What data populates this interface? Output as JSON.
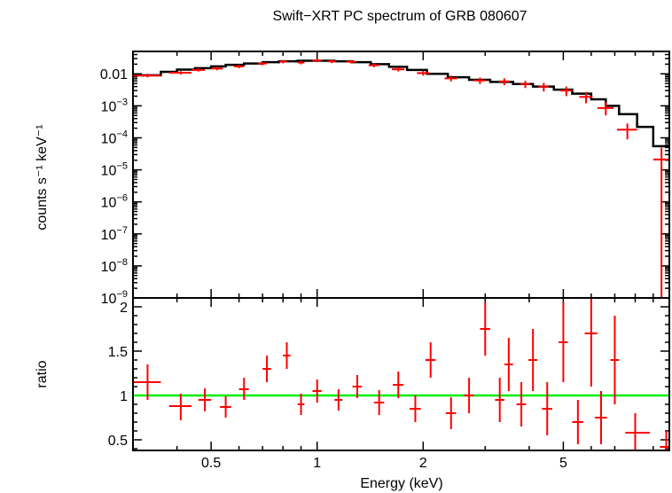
{
  "chart_data": [
    {
      "type": "scatter",
      "title": "Swift−XRT PC spectrum of GRB 080607",
      "xlabel": "",
      "ylabel": "counts s⁻¹ keV⁻¹",
      "xscale": "log",
      "yscale": "log",
      "xlim": [
        0.3,
        10
      ],
      "ylim": [
        1e-09,
        0.05
      ],
      "ytick_labels": [
        {
          "value": 0.01,
          "base": "0.01",
          "exp": ""
        },
        {
          "value": 0.001,
          "base": "10",
          "exp": "−3"
        },
        {
          "value": 0.0001,
          "base": "10",
          "exp": "−4"
        },
        {
          "value": 1e-05,
          "base": "10",
          "exp": "−5"
        },
        {
          "value": 1e-06,
          "base": "10",
          "exp": "−6"
        },
        {
          "value": 1e-07,
          "base": "10",
          "exp": "−7"
        },
        {
          "value": 1e-08,
          "base": "10",
          "exp": "−8"
        },
        {
          "value": 1e-09,
          "base": "10",
          "exp": "−9"
        }
      ],
      "grid": false,
      "series": [
        {
          "color": "#ff0000",
          "style": "errorbars",
          "points": [
            {
              "x": 0.33,
              "xerr": [
                0.3,
                0.36
              ],
              "y": 0.0088,
              "yerr": [
                0.0077,
                0.01
              ]
            },
            {
              "x": 0.41,
              "xerr": [
                0.38,
                0.44
              ],
              "y": 0.0108,
              "yerr": [
                0.0095,
                0.0121
              ]
            },
            {
              "x": 0.46,
              "xerr": [
                0.44,
                0.48
              ],
              "y": 0.0132,
              "yerr": [
                0.0118,
                0.015
              ]
            },
            {
              "x": 0.52,
              "xerr": [
                0.5,
                0.54
              ],
              "y": 0.0146,
              "yerr": [
                0.013,
                0.0165
              ]
            },
            {
              "x": 0.6,
              "xerr": [
                0.58,
                0.62
              ],
              "y": 0.017,
              "yerr": [
                0.015,
                0.0192
              ]
            },
            {
              "x": 0.7,
              "xerr": [
                0.68,
                0.72
              ],
              "y": 0.021,
              "yerr": [
                0.0185,
                0.0235
              ]
            },
            {
              "x": 0.8,
              "xerr": [
                0.78,
                0.82
              ],
              "y": 0.024,
              "yerr": [
                0.0212,
                0.027
              ]
            },
            {
              "x": 0.9,
              "xerr": [
                0.88,
                0.92
              ],
              "y": 0.0225,
              "yerr": [
                0.0198,
                0.0255
              ]
            },
            {
              "x": 1.0,
              "xerr": [
                0.97,
                1.03
              ],
              "y": 0.026,
              "yerr": [
                0.023,
                0.029
              ]
            },
            {
              "x": 1.1,
              "xerr": [
                1.07,
                1.13
              ],
              "y": 0.0245,
              "yerr": [
                0.0215,
                0.0275
              ]
            },
            {
              "x": 1.25,
              "xerr": [
                1.21,
                1.29
              ],
              "y": 0.0238,
              "yerr": [
                0.021,
                0.0268
              ]
            },
            {
              "x": 1.45,
              "xerr": [
                1.4,
                1.5
              ],
              "y": 0.0185,
              "yerr": [
                0.016,
                0.021
              ]
            },
            {
              "x": 1.7,
              "xerr": [
                1.63,
                1.77
              ],
              "y": 0.0138,
              "yerr": [
                0.0118,
                0.016
              ]
            },
            {
              "x": 2.0,
              "xerr": [
                1.92,
                2.08
              ],
              "y": 0.0105,
              "yerr": [
                0.0088,
                0.0122
              ]
            },
            {
              "x": 2.4,
              "xerr": [
                2.3,
                2.5
              ],
              "y": 0.0072,
              "yerr": [
                0.0058,
                0.0088
              ]
            },
            {
              "x": 2.9,
              "xerr": [
                2.78,
                3.02
              ],
              "y": 0.0062,
              "yerr": [
                0.0048,
                0.0076
              ]
            },
            {
              "x": 3.4,
              "xerr": [
                3.28,
                3.52
              ],
              "y": 0.0058,
              "yerr": [
                0.0044,
                0.0072
              ]
            },
            {
              "x": 3.9,
              "xerr": [
                3.78,
                4.02
              ],
              "y": 0.0048,
              "yerr": [
                0.0036,
                0.006
              ]
            },
            {
              "x": 4.4,
              "xerr": [
                4.25,
                4.55
              ],
              "y": 0.004,
              "yerr": [
                0.0028,
                0.0052
              ]
            },
            {
              "x": 5.1,
              "xerr": [
                4.9,
                5.3
              ],
              "y": 0.003,
              "yerr": [
                0.002,
                0.004
              ]
            },
            {
              "x": 5.8,
              "xerr": [
                5.55,
                6.05
              ],
              "y": 0.0019,
              "yerr": [
                0.0012,
                0.0027
              ]
            },
            {
              "x": 6.6,
              "xerr": [
                6.25,
                6.95
              ],
              "y": 0.00085,
              "yerr": [
                0.0005,
                0.0013
              ]
            },
            {
              "x": 7.6,
              "xerr": [
                7.1,
                8.1
              ],
              "y": 0.00018,
              "yerr": [
                9e-05,
                0.00028
              ]
            },
            {
              "x": 9.5,
              "xerr": [
                9.0,
                10.0
              ],
              "y": 2.1e-05,
              "yerr": [
                1e-09,
                5e-05
              ]
            }
          ]
        },
        {
          "color": "#000000",
          "style": "step",
          "edges": [
            0.3,
            0.36,
            0.4,
            0.45,
            0.5,
            0.55,
            0.62,
            0.7,
            0.78,
            0.88,
            1.0,
            1.12,
            1.26,
            1.42,
            1.6,
            1.8,
            2.05,
            2.35,
            2.7,
            3.1,
            3.6,
            4.1,
            4.7,
            5.3,
            6.0,
            6.6,
            7.2,
            8.1,
            9.0,
            10.0
          ],
          "values": [
            0.009,
            0.0115,
            0.0135,
            0.015,
            0.017,
            0.019,
            0.021,
            0.023,
            0.0245,
            0.0255,
            0.0255,
            0.0245,
            0.023,
            0.02,
            0.0165,
            0.0132,
            0.01,
            0.0078,
            0.0065,
            0.0056,
            0.0048,
            0.004,
            0.0032,
            0.0024,
            0.0016,
            0.001,
            0.00055,
            0.00022,
            5.5e-05
          ]
        }
      ]
    },
    {
      "type": "scatter",
      "title": "",
      "xlabel": "Energy (keV)",
      "ylabel": "ratio",
      "xscale": "log",
      "yscale": "linear",
      "xlim": [
        0.3,
        10
      ],
      "ylim": [
        0.38,
        2.1
      ],
      "xticks": [
        0.5,
        1,
        2,
        5
      ],
      "xtick_labels": [
        "0.5",
        "1",
        "2",
        "5"
      ],
      "yticks": [
        0.5,
        1,
        1.5,
        2
      ],
      "ytick_labels": [
        "0.5",
        "1",
        "1.5",
        "2"
      ],
      "grid": false,
      "series": [
        {
          "color": "#ff0000",
          "style": "errorbars",
          "points": [
            {
              "x": 0.33,
              "xerr": [
                0.3,
                0.36
              ],
              "y": 1.15,
              "yerr": [
                0.95,
                1.35
              ]
            },
            {
              "x": 0.41,
              "xerr": [
                0.38,
                0.44
              ],
              "y": 0.88,
              "yerr": [
                0.72,
                1.02
              ]
            },
            {
              "x": 0.48,
              "xerr": [
                0.46,
                0.5
              ],
              "y": 0.95,
              "yerr": [
                0.82,
                1.08
              ]
            },
            {
              "x": 0.55,
              "xerr": [
                0.53,
                0.57
              ],
              "y": 0.87,
              "yerr": [
                0.75,
                0.99
              ]
            },
            {
              "x": 0.62,
              "xerr": [
                0.6,
                0.64
              ],
              "y": 1.07,
              "yerr": [
                0.95,
                1.2
              ]
            },
            {
              "x": 0.72,
              "xerr": [
                0.7,
                0.74
              ],
              "y": 1.3,
              "yerr": [
                1.15,
                1.45
              ]
            },
            {
              "x": 0.82,
              "xerr": [
                0.8,
                0.84
              ],
              "y": 1.45,
              "yerr": [
                1.3,
                1.6
              ]
            },
            {
              "x": 0.9,
              "xerr": [
                0.88,
                0.92
              ],
              "y": 0.9,
              "yerr": [
                0.78,
                1.02
              ]
            },
            {
              "x": 1.0,
              "xerr": [
                0.97,
                1.03
              ],
              "y": 1.05,
              "yerr": [
                0.92,
                1.18
              ]
            },
            {
              "x": 1.15,
              "xerr": [
                1.12,
                1.18
              ],
              "y": 0.95,
              "yerr": [
                0.83,
                1.07
              ]
            },
            {
              "x": 1.3,
              "xerr": [
                1.26,
                1.34
              ],
              "y": 1.1,
              "yerr": [
                0.97,
                1.23
              ]
            },
            {
              "x": 1.5,
              "xerr": [
                1.45,
                1.55
              ],
              "y": 0.92,
              "yerr": [
                0.78,
                1.06
              ]
            },
            {
              "x": 1.7,
              "xerr": [
                1.64,
                1.76
              ],
              "y": 1.12,
              "yerr": [
                0.97,
                1.27
              ]
            },
            {
              "x": 1.9,
              "xerr": [
                1.83,
                1.97
              ],
              "y": 0.85,
              "yerr": [
                0.7,
                1.0
              ]
            },
            {
              "x": 2.1,
              "xerr": [
                2.03,
                2.17
              ],
              "y": 1.4,
              "yerr": [
                1.2,
                1.6
              ]
            },
            {
              "x": 2.4,
              "xerr": [
                2.32,
                2.48
              ],
              "y": 0.8,
              "yerr": [
                0.62,
                0.98
              ]
            },
            {
              "x": 2.7,
              "xerr": [
                2.61,
                2.79
              ],
              "y": 1.0,
              "yerr": [
                0.8,
                1.2
              ]
            },
            {
              "x": 3.0,
              "xerr": [
                2.9,
                3.1
              ],
              "y": 1.75,
              "yerr": [
                1.45,
                2.05
              ]
            },
            {
              "x": 3.3,
              "xerr": [
                3.2,
                3.4
              ],
              "y": 0.95,
              "yerr": [
                0.7,
                1.2
              ]
            },
            {
              "x": 3.5,
              "xerr": [
                3.4,
                3.6
              ],
              "y": 1.35,
              "yerr": [
                1.05,
                1.65
              ]
            },
            {
              "x": 3.8,
              "xerr": [
                3.68,
                3.92
              ],
              "y": 0.9,
              "yerr": [
                0.65,
                1.15
              ]
            },
            {
              "x": 4.1,
              "xerr": [
                3.98,
                4.22
              ],
              "y": 1.4,
              "yerr": [
                1.05,
                1.75
              ]
            },
            {
              "x": 4.5,
              "xerr": [
                4.35,
                4.65
              ],
              "y": 0.85,
              "yerr": [
                0.55,
                1.15
              ]
            },
            {
              "x": 5.0,
              "xerr": [
                4.85,
                5.15
              ],
              "y": 1.6,
              "yerr": [
                1.15,
                2.05
              ]
            },
            {
              "x": 5.5,
              "xerr": [
                5.3,
                5.7
              ],
              "y": 0.7,
              "yerr": [
                0.45,
                0.95
              ]
            },
            {
              "x": 6.0,
              "xerr": [
                5.75,
                6.25
              ],
              "y": 1.7,
              "yerr": [
                1.1,
                2.1
              ]
            },
            {
              "x": 6.4,
              "xerr": [
                6.15,
                6.65
              ],
              "y": 0.75,
              "yerr": [
                0.45,
                1.05
              ]
            },
            {
              "x": 7.0,
              "xerr": [
                6.8,
                7.2
              ],
              "y": 1.4,
              "yerr": [
                0.9,
                1.9
              ]
            },
            {
              "x": 8.0,
              "xerr": [
                7.5,
                8.8
              ],
              "y": 0.58,
              "yerr": [
                0.38,
                0.8
              ]
            },
            {
              "x": 9.8,
              "xerr": [
                9.4,
                10.0
              ],
              "y": 0.42,
              "yerr": [
                0.38,
                0.6
              ]
            }
          ]
        },
        {
          "color": "#00ee00",
          "style": "line",
          "y": 1
        }
      ]
    }
  ]
}
